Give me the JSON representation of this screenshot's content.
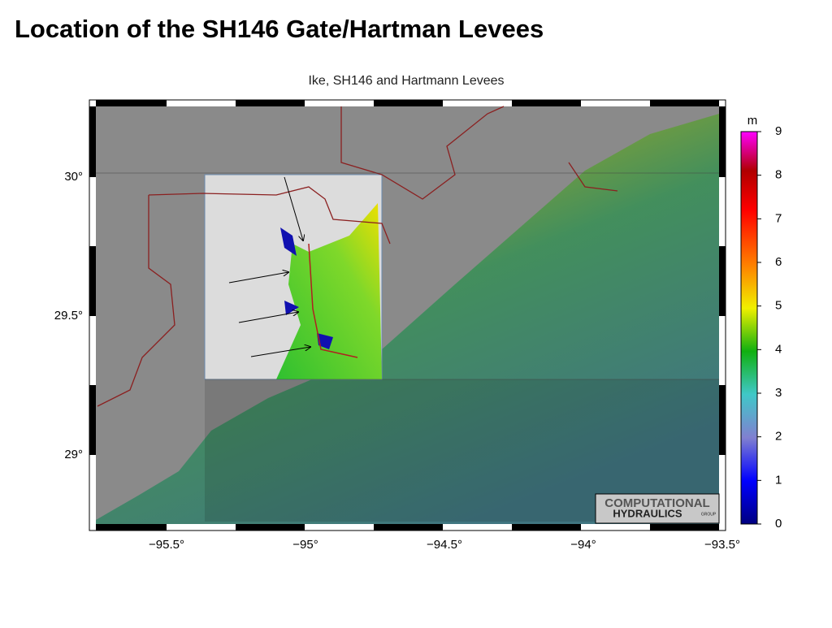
{
  "slide": {
    "title": "Location of the SH146 Gate/Hartman Levees"
  },
  "map": {
    "title": "Ike, SH146 and Hartmann Levees",
    "x_labels": [
      "−95.5°",
      "−95°",
      "−94.5°",
      "−94°",
      "−93.5°"
    ],
    "y_labels": [
      "30°",
      "29.5°",
      "29°"
    ],
    "colorbar": {
      "unit": "m",
      "ticks": [
        0,
        1,
        2,
        3,
        4,
        5,
        6,
        7,
        8,
        9
      ]
    },
    "logo": {
      "line1": "COMPUTATIONAL",
      "line2": "HYDRAULICS",
      "line3": "GROUP"
    }
  }
}
